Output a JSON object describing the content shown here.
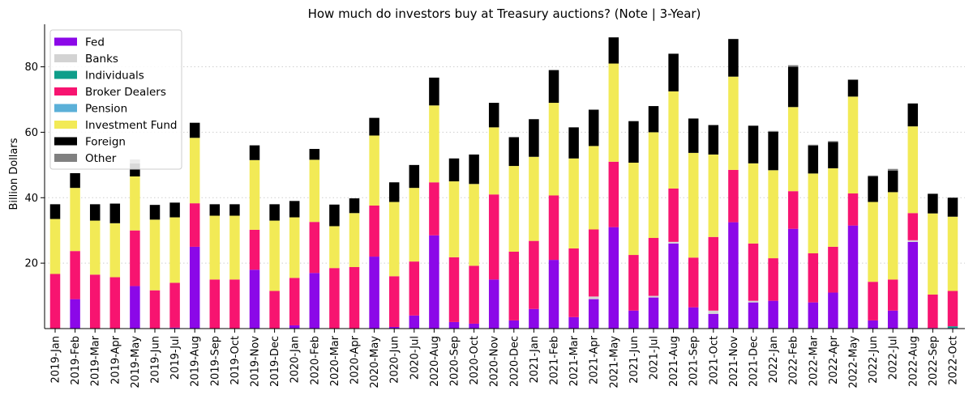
{
  "chart_data": {
    "type": "bar",
    "stacked": true,
    "title": "How much do investors buy at Treasury auctions? (Note | 3-Year)",
    "xlabel": "",
    "ylabel": "Billion Dollars",
    "ylim": [
      0,
      93
    ],
    "yticks": [
      20,
      40,
      60,
      80
    ],
    "grid": "horizontal dotted",
    "legend_position": "top-left",
    "categories": [
      "2019-Jan",
      "2019-Feb",
      "2019-Mar",
      "2019-Apr",
      "2019-May",
      "2019-Jun",
      "2019-Jul",
      "2019-Aug",
      "2019-Sep",
      "2019-Oct",
      "2019-Nov",
      "2019-Dec",
      "2020-Jan",
      "2020-Feb",
      "2020-Mar",
      "2020-Apr",
      "2020-May",
      "2020-Jun",
      "2020-Jul",
      "2020-Aug",
      "2020-Sep",
      "2020-Oct",
      "2020-Nov",
      "2020-Dec",
      "2021-Jan",
      "2021-Feb",
      "2021-Mar",
      "2021-Apr",
      "2021-May",
      "2021-Jun",
      "2021-Jul",
      "2021-Aug",
      "2021-Sep",
      "2021-Oct",
      "2021-Nov",
      "2021-Dec",
      "2022-Jan",
      "2022-Feb",
      "2022-Mar",
      "2022-Apr",
      "2022-May",
      "2022-Jun",
      "2022-Jul",
      "2022-Aug",
      "2022-Sep",
      "2022-Oct"
    ],
    "series": [
      {
        "name": "Fed",
        "color": "#8b08e8",
        "values": [
          0,
          9,
          0,
          0,
          13,
          0,
          0.3,
          25,
          0,
          0,
          18,
          0,
          1,
          17,
          0,
          0,
          22,
          0.5,
          4,
          28.5,
          2,
          1.5,
          15,
          2.5,
          6,
          21,
          3.5,
          9,
          31,
          5.5,
          9.5,
          26,
          6.5,
          4.5,
          32.5,
          8,
          8.5,
          30.5,
          8,
          11,
          31.5,
          2.5,
          5.5,
          26.5,
          0.2,
          0.2
        ]
      },
      {
        "name": "Banks",
        "color": "#d3d3d3",
        "values": [
          0,
          0,
          0,
          0,
          0,
          0,
          0,
          0,
          0,
          0,
          0,
          0,
          0,
          0,
          0,
          0,
          0,
          0,
          0,
          0,
          0,
          0,
          0,
          0,
          0,
          0,
          0,
          0.8,
          0,
          0,
          0.5,
          0.5,
          0,
          1,
          0,
          0.5,
          0,
          0,
          0,
          0,
          0,
          0,
          0,
          0.5,
          0,
          0
        ]
      },
      {
        "name": "Individuals",
        "color": "#0e9e8a",
        "values": [
          0,
          0,
          0,
          0,
          0,
          0,
          0,
          0,
          0,
          0,
          0,
          0,
          0,
          0,
          0,
          0,
          0,
          0,
          0,
          0,
          0,
          0,
          0,
          0,
          0,
          0,
          0,
          0,
          0,
          0,
          0,
          0,
          0,
          0,
          0,
          0,
          0,
          0,
          0,
          0,
          0,
          0,
          0,
          0,
          0,
          0.5
        ]
      },
      {
        "name": "Broker Dealers",
        "color": "#f71470",
        "values": [
          16.7,
          14.7,
          16.5,
          15.7,
          17,
          11.7,
          13.7,
          13.3,
          15,
          15,
          12.2,
          11.5,
          14.5,
          15.6,
          18.5,
          18.8,
          15.6,
          15.5,
          16.5,
          16.2,
          19.8,
          17.7,
          26,
          21,
          20.8,
          19.7,
          21,
          20.5,
          20,
          17,
          17.7,
          16.3,
          15.2,
          22.5,
          16,
          17.5,
          13,
          11.5,
          15,
          14,
          9.8,
          11.8,
          9.5,
          8.3,
          10.2,
          10.8
        ]
      },
      {
        "name": "Pension",
        "color": "#5bb0d8",
        "values": [
          0,
          0,
          0,
          0,
          0,
          0,
          0,
          0,
          0,
          0,
          0,
          0,
          0,
          0,
          0,
          0,
          0,
          0,
          0,
          0,
          0,
          0,
          0,
          0,
          0,
          0,
          0,
          0,
          0,
          0,
          0,
          0,
          0,
          0,
          0,
          0,
          0,
          0,
          0,
          0,
          0,
          0,
          0,
          0,
          0,
          0
        ]
      },
      {
        "name": "Investment Fund",
        "color": "#f2ea56",
        "values": [
          16.8,
          19.3,
          16.5,
          16.5,
          16.5,
          21.6,
          20,
          20,
          19.5,
          19.5,
          21.3,
          21.5,
          18.5,
          19,
          12.8,
          16.5,
          21.4,
          22.7,
          22.5,
          23.5,
          23.2,
          25,
          20.5,
          26.2,
          25.7,
          28.3,
          27.5,
          25.5,
          30,
          28.2,
          32.3,
          29.7,
          32,
          25.2,
          28.5,
          24.5,
          26.9,
          25.7,
          24.4,
          24,
          29.6,
          24.4,
          26.7,
          26.5,
          24.8,
          22.7
        ]
      },
      {
        "name": "Foreign",
        "color": "#000000",
        "values": [
          4.5,
          4.5,
          5,
          6,
          4,
          4.5,
          4.5,
          4.6,
          3.5,
          3.5,
          4.5,
          5,
          5,
          3.3,
          6.6,
          4.5,
          5.4,
          6,
          7,
          8.5,
          7,
          9,
          7.5,
          8.8,
          11.5,
          10,
          9.5,
          11.1,
          8,
          12.7,
          8,
          11.5,
          10.5,
          9,
          11.5,
          11.5,
          11.7,
          12.3,
          8.5,
          8,
          5.1,
          7.8,
          6.6,
          7,
          6,
          5.8
        ]
      },
      {
        "name": "Other",
        "color": "#808080",
        "values": [
          0,
          0,
          0,
          0,
          1.2,
          0,
          0,
          0,
          0,
          0,
          0,
          0,
          0,
          0,
          0,
          0,
          0,
          0,
          0,
          0,
          0,
          0,
          0,
          0,
          0,
          0,
          0,
          0,
          0,
          0,
          0,
          0,
          0,
          0,
          0,
          0,
          0.3,
          0.5,
          0.3,
          0.3,
          0.2,
          0.3,
          0.5,
          0,
          0,
          0
        ]
      }
    ]
  }
}
